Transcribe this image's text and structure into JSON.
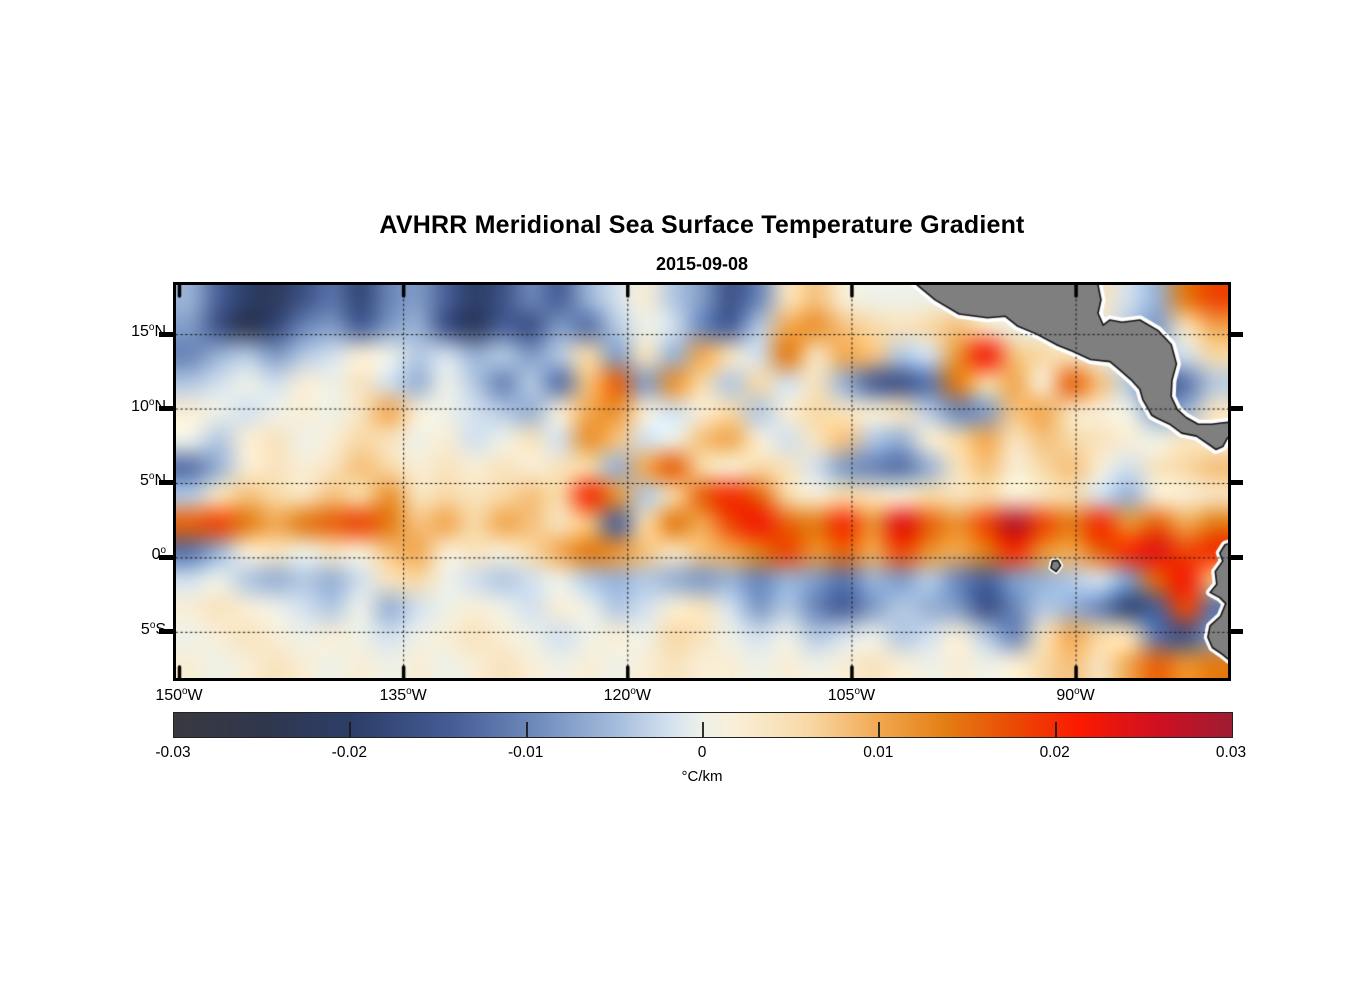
{
  "title": "AVHRR Meridional Sea Surface Temperature Gradient",
  "subtitle": "2015-09-08",
  "colorbar": {
    "label": "°C/km",
    "min": -0.03,
    "max": 0.03,
    "tick_labels": [
      "-0.03",
      "-0.02",
      "-0.01",
      "0",
      "0.01",
      "0.02",
      "0.03"
    ],
    "tick_values": [
      -0.03,
      -0.02,
      -0.01,
      0,
      0.01,
      0.02,
      0.03
    ],
    "inner_tick_values": [
      -0.02,
      -0.01,
      0,
      0.01,
      0.02
    ],
    "stops": [
      [
        0.0,
        "#39393f"
      ],
      [
        0.09,
        "#2f374e"
      ],
      [
        0.17,
        "#2c3e69"
      ],
      [
        0.26,
        "#455b94"
      ],
      [
        0.34,
        "#6d89bb"
      ],
      [
        0.42,
        "#a6bedd"
      ],
      [
        0.47,
        "#d5e2ef"
      ],
      [
        0.5,
        "#eef1e8"
      ],
      [
        0.53,
        "#f9efd8"
      ],
      [
        0.6,
        "#f8d9a6"
      ],
      [
        0.67,
        "#f1a54c"
      ],
      [
        0.73,
        "#e37d13"
      ],
      [
        0.79,
        "#ea4d05"
      ],
      [
        0.855,
        "#fb1a00"
      ],
      [
        0.93,
        "#cf1021"
      ],
      [
        1.0,
        "#9e1c33"
      ]
    ]
  },
  "axes": {
    "x_ticks": [
      {
        "deg": "150",
        "hem": "W",
        "lon": -150
      },
      {
        "deg": "135",
        "hem": "W",
        "lon": -135
      },
      {
        "deg": "120",
        "hem": "W",
        "lon": -120
      },
      {
        "deg": "105",
        "hem": "W",
        "lon": -105
      },
      {
        "deg": "90",
        "hem": "W",
        "lon": -90
      }
    ],
    "y_ticks": [
      {
        "deg": "15",
        "hem": "N",
        "lat": 15
      },
      {
        "deg": "10",
        "hem": "N",
        "lat": 10
      },
      {
        "deg": "5",
        "hem": "N",
        "lat": 5
      },
      {
        "deg": "0",
        "hem": "",
        "lat": 0
      },
      {
        "deg": "5",
        "hem": "S",
        "lat": -5
      }
    ],
    "gridline_lons": [
      -135,
      -120,
      -105,
      -90
    ],
    "gridline_lats": [
      15,
      10,
      5,
      0,
      -5
    ]
  },
  "chart_data": {
    "type": "heatmap",
    "title": "AVHRR Meridional Sea Surface Temperature Gradient",
    "date": "2015-09-08",
    "units": "°C/km",
    "value_range": [
      -0.03,
      0.03
    ],
    "lon_range": [
      -150.2,
      -79.8
    ],
    "lat_range": [
      -8.1,
      18.3
    ],
    "grid_on": true,
    "legend_position": "bottom-colorbar",
    "grid_lons": [
      -150,
      -148,
      -146,
      -144,
      -142,
      -140,
      -138,
      -136,
      -134,
      -132,
      -130,
      -128,
      -126,
      -124,
      -122,
      -120,
      -118,
      -116,
      -114,
      -112,
      -110,
      -108,
      -106,
      -104,
      -102,
      -100,
      -98,
      -96,
      -94,
      -92,
      -90,
      -88,
      -86,
      -84,
      -82,
      -80,
      -78
    ],
    "grid_lats": [
      18,
      16,
      14,
      12,
      10,
      8,
      6,
      4,
      2,
      0,
      -2,
      -4,
      -6,
      -8
    ],
    "value_scale": 0.001,
    "values": [
      [
        -6,
        -14,
        -20,
        -22,
        -16,
        -12,
        -18,
        -10,
        -8,
        -14,
        -20,
        -16,
        -10,
        -14,
        -6,
        -2,
        2,
        -4,
        -8,
        -16,
        -10,
        4,
        8,
        2,
        0,
        0,
        0,
        0,
        0,
        0,
        0,
        2,
        4,
        -2,
        -6,
        14,
        18
      ],
      [
        -8,
        -16,
        -24,
        -18,
        -10,
        -8,
        -14,
        -8,
        -6,
        -16,
        -22,
        -14,
        -16,
        -8,
        -12,
        -4,
        0,
        -2,
        -10,
        -14,
        -4,
        10,
        12,
        8,
        6,
        4,
        6,
        8,
        4,
        0,
        0,
        0,
        2,
        -4,
        -8,
        4,
        10
      ],
      [
        -10,
        -6,
        -4,
        -8,
        -4,
        -2,
        2,
        0,
        -4,
        -2,
        -6,
        -4,
        -8,
        -4,
        6,
        -8,
        4,
        -6,
        10,
        4,
        -2,
        14,
        4,
        10,
        8,
        -4,
        -2,
        12,
        22,
        8,
        6,
        4,
        0,
        -2,
        -4,
        -2,
        6
      ],
      [
        -4,
        -2,
        0,
        -2,
        2,
        0,
        4,
        -2,
        -6,
        0,
        -4,
        -10,
        -4,
        -12,
        8,
        16,
        -8,
        12,
        6,
        -4,
        6,
        -2,
        4,
        -6,
        -14,
        -16,
        -12,
        14,
        6,
        10,
        2,
        16,
        8,
        -4,
        -16,
        -12,
        -4
      ],
      [
        2,
        0,
        -2,
        0,
        2,
        0,
        4,
        10,
        2,
        0,
        -2,
        -4,
        -6,
        2,
        10,
        12,
        2,
        -2,
        2,
        6,
        -4,
        2,
        6,
        4,
        2,
        4,
        -4,
        -10,
        -8,
        8,
        10,
        4,
        2,
        0,
        -8,
        -6,
        4
      ],
      [
        0,
        -4,
        2,
        4,
        0,
        2,
        6,
        4,
        0,
        2,
        -2,
        0,
        4,
        -2,
        12,
        8,
        -2,
        0,
        8,
        10,
        2,
        -2,
        4,
        8,
        -4,
        -6,
        2,
        6,
        10,
        4,
        8,
        6,
        4,
        2,
        0,
        4,
        2
      ],
      [
        -12,
        -6,
        2,
        4,
        2,
        4,
        8,
        6,
        2,
        4,
        2,
        4,
        2,
        4,
        6,
        -6,
        10,
        16,
        6,
        2,
        6,
        4,
        -2,
        -8,
        -10,
        -12,
        -6,
        4,
        8,
        2,
        6,
        8,
        2,
        -2,
        4,
        6,
        8
      ],
      [
        -4,
        4,
        8,
        6,
        4,
        8,
        6,
        12,
        4,
        6,
        4,
        6,
        8,
        6,
        20,
        12,
        -4,
        6,
        16,
        20,
        16,
        6,
        2,
        6,
        4,
        2,
        6,
        4,
        6,
        2,
        4,
        6,
        -2,
        -6,
        2,
        2,
        4
      ],
      [
        16,
        18,
        14,
        10,
        14,
        16,
        18,
        14,
        8,
        10,
        6,
        10,
        8,
        4,
        8,
        -14,
        6,
        14,
        10,
        18,
        22,
        16,
        14,
        20,
        12,
        24,
        16,
        12,
        18,
        28,
        18,
        14,
        20,
        12,
        16,
        10,
        14
      ],
      [
        -12,
        -6,
        2,
        4,
        0,
        4,
        2,
        8,
        10,
        2,
        4,
        2,
        6,
        10,
        14,
        12,
        8,
        4,
        8,
        10,
        14,
        18,
        12,
        16,
        10,
        18,
        12,
        10,
        14,
        20,
        12,
        10,
        16,
        20,
        24,
        18,
        20
      ],
      [
        -2,
        0,
        -4,
        -6,
        -4,
        -6,
        -2,
        4,
        6,
        0,
        -2,
        -4,
        -2,
        0,
        -4,
        -6,
        -4,
        -6,
        -8,
        -6,
        -10,
        -6,
        -8,
        -12,
        -6,
        -8,
        -4,
        -10,
        -14,
        -8,
        -6,
        -4,
        -2,
        -8,
        16,
        22,
        8
      ],
      [
        2,
        4,
        2,
        0,
        -2,
        -4,
        0,
        -6,
        -2,
        0,
        2,
        0,
        -2,
        2,
        0,
        -4,
        -2,
        2,
        4,
        -2,
        -8,
        -4,
        -10,
        -14,
        -8,
        -4,
        -6,
        -8,
        -16,
        -10,
        -4,
        -6,
        -10,
        -18,
        -14,
        18,
        -12
      ],
      [
        0,
        2,
        4,
        2,
        0,
        2,
        0,
        -2,
        0,
        2,
        4,
        2,
        0,
        -2,
        0,
        2,
        0,
        6,
        4,
        0,
        -2,
        0,
        -4,
        -2,
        0,
        -4,
        -2,
        2,
        -4,
        -10,
        4,
        10,
        6,
        4,
        -12,
        -16,
        -8
      ],
      [
        2,
        0,
        2,
        4,
        2,
        0,
        2,
        0,
        2,
        0,
        2,
        4,
        2,
        0,
        2,
        0,
        2,
        4,
        2,
        2,
        0,
        2,
        0,
        2,
        4,
        2,
        0,
        2,
        0,
        2,
        6,
        8,
        4,
        10,
        16,
        12,
        14
      ]
    ],
    "land": {
      "fill": "#7f7f7f",
      "outline": "#151515",
      "coast_halo": "#ffffff",
      "polygons": {
        "central_america": [
          [
            -101.2,
            18.8
          ],
          [
            -99.4,
            17.3
          ],
          [
            -97.8,
            16.35
          ],
          [
            -95.9,
            16.1
          ],
          [
            -94.7,
            16.2
          ],
          [
            -93.9,
            15.55
          ],
          [
            -92.6,
            15.0
          ],
          [
            -91.2,
            14.25
          ],
          [
            -90.2,
            13.85
          ],
          [
            -89.0,
            13.3
          ],
          [
            -87.7,
            13.15
          ],
          [
            -87.1,
            12.65
          ],
          [
            -86.3,
            11.95
          ],
          [
            -85.7,
            11.3
          ],
          [
            -85.5,
            10.6
          ],
          [
            -85.15,
            10.0
          ],
          [
            -84.9,
            9.55
          ],
          [
            -84.55,
            9.35
          ],
          [
            -83.7,
            8.95
          ],
          [
            -82.9,
            8.35
          ],
          [
            -81.9,
            8.15
          ],
          [
            -81.1,
            7.6
          ],
          [
            -80.6,
            7.25
          ],
          [
            -80.15,
            7.45
          ],
          [
            -79.85,
            8.0
          ],
          [
            -79.45,
            8.4
          ],
          [
            -79.45,
            9.1
          ],
          [
            -80.1,
            9.05
          ],
          [
            -80.9,
            8.95
          ],
          [
            -81.8,
            8.95
          ],
          [
            -82.6,
            9.4
          ],
          [
            -83.2,
            9.95
          ],
          [
            -83.6,
            10.8
          ],
          [
            -83.55,
            11.9
          ],
          [
            -83.25,
            13.0
          ],
          [
            -83.6,
            14.3
          ],
          [
            -84.5,
            15.25
          ],
          [
            -85.7,
            15.95
          ],
          [
            -86.9,
            15.8
          ],
          [
            -87.7,
            15.95
          ],
          [
            -88.15,
            15.6
          ],
          [
            -88.5,
            16.4
          ],
          [
            -88.3,
            17.3
          ],
          [
            -88.6,
            18.8
          ]
        ],
        "south_america": [
          [
            -79.0,
            1.2
          ],
          [
            -80.0,
            0.85
          ],
          [
            -80.35,
            0.3
          ],
          [
            -80.15,
            -0.25
          ],
          [
            -80.65,
            -0.95
          ],
          [
            -80.55,
            -1.8
          ],
          [
            -81.0,
            -2.35
          ],
          [
            -80.35,
            -2.7
          ],
          [
            -79.95,
            -3.1
          ],
          [
            -80.3,
            -3.95
          ],
          [
            -81.0,
            -4.6
          ],
          [
            -81.15,
            -5.35
          ],
          [
            -80.85,
            -6.05
          ],
          [
            -80.2,
            -6.5
          ],
          [
            -79.7,
            -6.9
          ],
          [
            -79.0,
            -7.1
          ]
        ],
        "galapagos": [
          [
            -91.55,
            -0.25
          ],
          [
            -91.2,
            -0.2
          ],
          [
            -91.0,
            -0.55
          ],
          [
            -91.3,
            -0.95
          ],
          [
            -91.65,
            -0.7
          ]
        ]
      }
    }
  }
}
